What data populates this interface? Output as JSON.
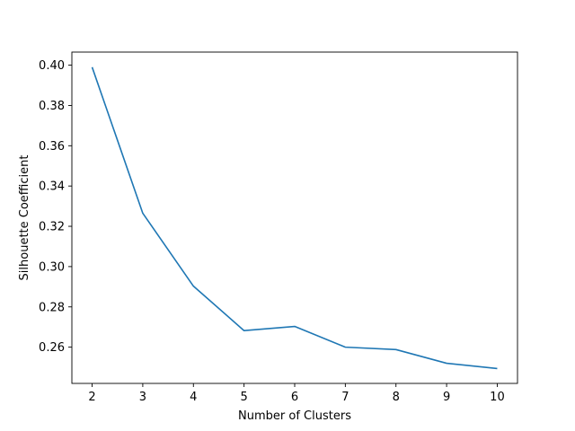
{
  "chart_data": {
    "type": "line",
    "title": "",
    "xlabel": "Number of Clusters",
    "ylabel": "Silhouette Coefficient",
    "x": [
      2,
      3,
      4,
      5,
      6,
      7,
      8,
      9,
      10
    ],
    "series": [
      {
        "values": [
          0.399,
          0.3265,
          0.2903,
          0.2682,
          0.2703,
          0.26,
          0.2588,
          0.252,
          0.2494
        ],
        "color": "#1f77b4"
      }
    ],
    "xlim": [
      1.6,
      10.4
    ],
    "ylim": [
      0.242,
      0.4065
    ],
    "xticks": [
      "2",
      "3",
      "4",
      "5",
      "6",
      "7",
      "8",
      "9",
      "10"
    ],
    "yticks": [
      "0.26",
      "0.28",
      "0.30",
      "0.32",
      "0.34",
      "0.36",
      "0.38",
      "0.40"
    ],
    "grid": false,
    "legend": "none"
  }
}
